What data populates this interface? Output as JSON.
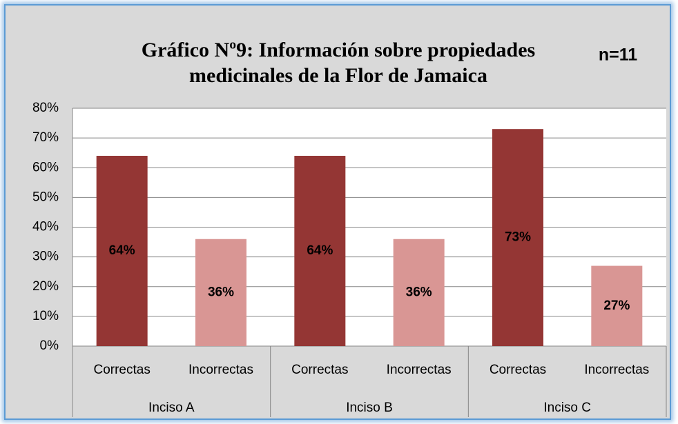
{
  "chart_data": {
    "type": "bar",
    "title": [
      "Gráfico Nº9: Información sobre propiedades",
      "medicinales de la Flor de Jamaica"
    ],
    "annotation": "n=11",
    "categories": [
      "Correctas",
      "Incorrectas",
      "Correctas",
      "Incorrectas",
      "Correctas",
      "Incorrectas"
    ],
    "groups": [
      "Inciso A",
      "Inciso B",
      "Inciso C"
    ],
    "values": [
      64,
      36,
      64,
      36,
      73,
      27
    ],
    "value_labels": [
      "64%",
      "36%",
      "64%",
      "36%",
      "73%",
      "27%"
    ],
    "colors": [
      "#943634",
      "#d99694",
      "#943634",
      "#d99694",
      "#943634",
      "#d99694"
    ],
    "ylim": [
      0,
      80
    ],
    "yticks": [
      {
        "value": 0,
        "label": "0%"
      },
      {
        "value": 10,
        "label": "10%"
      },
      {
        "value": 20,
        "label": "20%"
      },
      {
        "value": 30,
        "label": "30%"
      },
      {
        "value": 40,
        "label": "40%"
      },
      {
        "value": 50,
        "label": "50%"
      },
      {
        "value": 60,
        "label": "60%"
      },
      {
        "value": 70,
        "label": "70%"
      },
      {
        "value": 80,
        "label": "80%"
      }
    ],
    "grid": true
  }
}
